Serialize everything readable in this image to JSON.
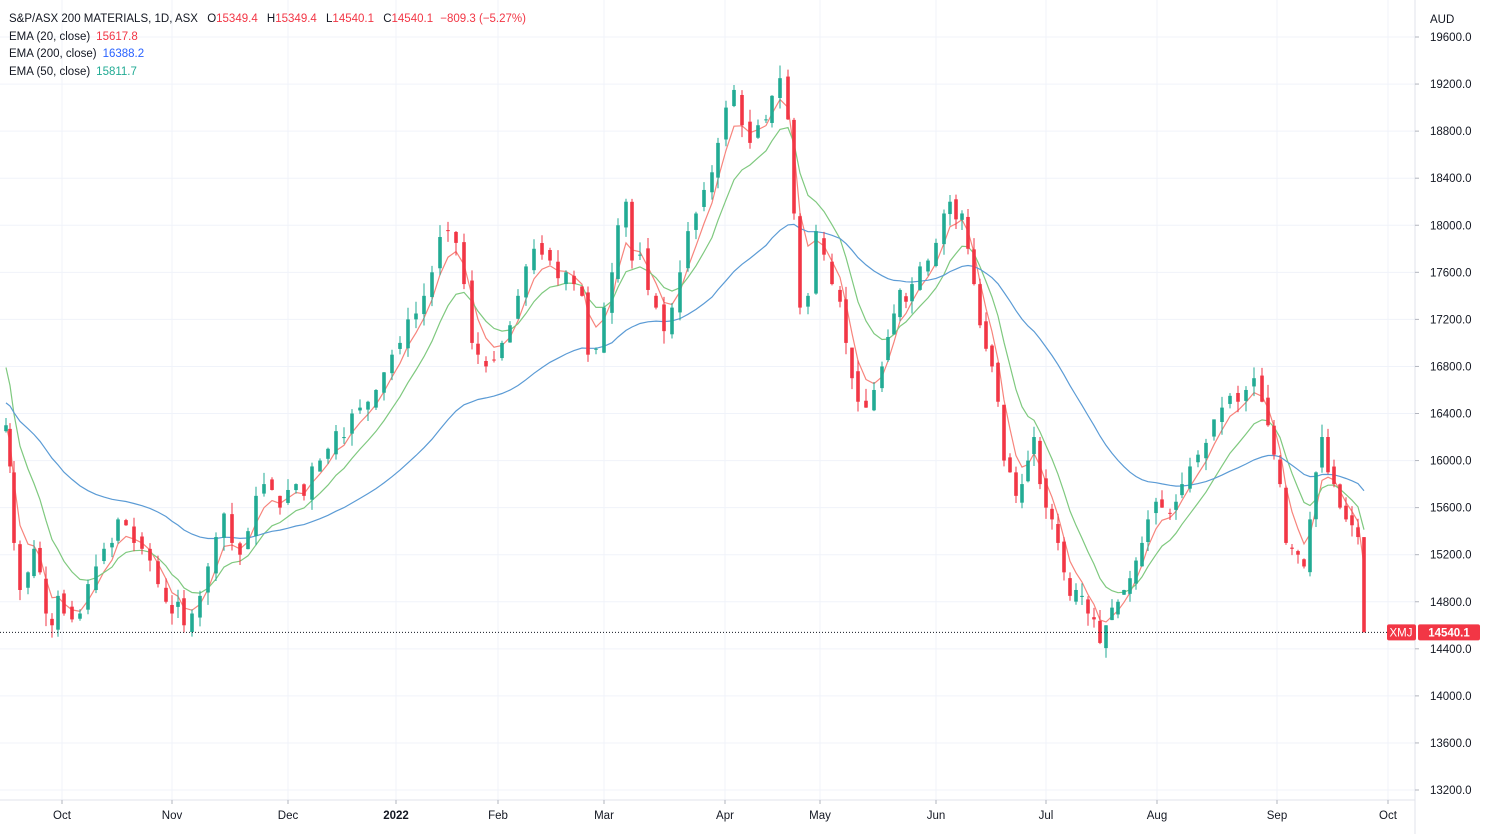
{
  "header": {
    "title": "S&P/ASX 200 MATERIALS, 1D, ASX",
    "o_label": "O",
    "o_value": "15349.4",
    "h_label": "H",
    "h_value": "15349.4",
    "l_label": "L",
    "l_value": "14540.1",
    "c_label": "C",
    "c_value": "14540.1",
    "change": "−809.3 (−5.27%)",
    "currency": "AUD"
  },
  "indicators": [
    {
      "label": "EMA (20, close)",
      "value": "15617.8",
      "color": "#f23645"
    },
    {
      "label": "EMA (200, close)",
      "value": "16388.2",
      "color": "#2962ff"
    },
    {
      "label": "EMA (50, close)",
      "value": "15811.7",
      "color": "#22ab94"
    }
  ],
  "price_tag": {
    "symbol": "XMJ",
    "value": "14540.1"
  },
  "colors": {
    "up": "#22ab94",
    "down": "#f23645",
    "ema20": "#f7847c",
    "ema50": "#7fc97f",
    "ema200": "#5b9bd5",
    "grid": "#f0f3fa",
    "price_line": "#131722"
  },
  "chart_data": {
    "type": "candlestick",
    "instrument": "S&P/ASX 200 MATERIALS",
    "interval": "1D",
    "y_ticks": [
      "19600.0",
      "19200.0",
      "18800.0",
      "18400.0",
      "18000.0",
      "17600.0",
      "17200.0",
      "16800.0",
      "16400.0",
      "16000.0",
      "15600.0",
      "15200.0",
      "14800.0",
      "14400.0",
      "14000.0",
      "13600.0",
      "13200.0"
    ],
    "ylim": [
      13100,
      19700
    ],
    "x_ticks": [
      "Oct",
      "Nov",
      "Dec",
      "2022",
      "Feb",
      "Mar",
      "Apr",
      "May",
      "Jun",
      "Jul",
      "Aug",
      "Sep",
      "Oct"
    ],
    "x_tick_bold": [
      false,
      false,
      false,
      true,
      false,
      false,
      false,
      false,
      false,
      false,
      false,
      false,
      false
    ],
    "last_close": 14540.1,
    "candles_approx": [
      {
        "period": "late Sep 2021",
        "open": 16300,
        "close": 16000,
        "low": 14800,
        "high": 16300
      },
      {
        "period": "Oct 2021",
        "open": 15300,
        "close": 14540,
        "low": 14320,
        "high": 15600
      },
      {
        "period": "Nov 2021",
        "open": 14540,
        "close": 15700,
        "low": 14540,
        "high": 15800
      },
      {
        "period": "Dec 2021",
        "open": 15500,
        "close": 16750,
        "low": 15300,
        "high": 16800
      },
      {
        "period": "Jan 2022",
        "open": 16800,
        "close": 16550,
        "low": 16450,
        "high": 18200
      },
      {
        "period": "Feb 2022",
        "open": 16700,
        "close": 17600,
        "low": 16450,
        "high": 18050
      },
      {
        "period": "Mar 2022",
        "open": 16700,
        "close": 18400,
        "low": 16700,
        "high": 18500
      },
      {
        "period": "Apr 2022",
        "open": 18200,
        "close": 18100,
        "low": 17900,
        "high": 19450
      },
      {
        "period": "May 2022",
        "open": 17300,
        "close": 16750,
        "low": 16200,
        "high": 18000
      },
      {
        "period": "Jun 2022",
        "open": 17000,
        "close": 16450,
        "low": 15500,
        "high": 18500
      },
      {
        "period": "Jul 2022",
        "open": 15600,
        "close": 14900,
        "low": 14270,
        "high": 16300
      },
      {
        "period": "Aug 2022",
        "open": 15100,
        "close": 16500,
        "low": 15000,
        "high": 16900
      },
      {
        "period": "Sep 2022",
        "open": 16400,
        "close": 14540,
        "low": 14540,
        "high": 16350
      }
    ],
    "series": [
      {
        "name": "EMA (20, close)",
        "last": 15617.8
      },
      {
        "name": "EMA (200, close)",
        "last": 16388.2
      },
      {
        "name": "EMA (50, close)",
        "last": 15811.7
      }
    ]
  }
}
